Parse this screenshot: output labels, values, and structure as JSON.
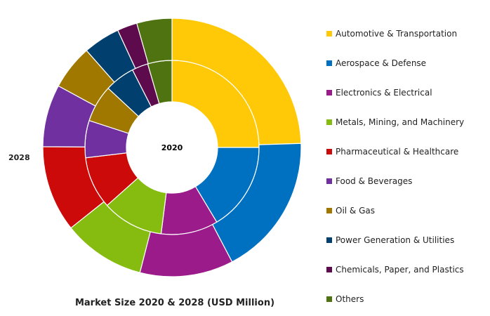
{
  "chart_data": {
    "type": "pie",
    "subtype": "nested-donut",
    "title": "Market Size 2020 & 2028 (USD Million)",
    "inner_label": "2020",
    "outer_label": "2028",
    "categories": [
      "Automotive & Transportation",
      "Aerospace & Defense",
      "Electronics & Electrical",
      "Metals, Mining, and Machinery",
      "Pharmaceutical & Healthcare",
      "Food & Beverages",
      "Oil & Gas",
      "Power Generation & Utilities",
      "Chemicals, Paper, and Plastics",
      "Others"
    ],
    "colors": [
      "#FFC907",
      "#0070C0",
      "#9B1B8A",
      "#86BC10",
      "#CC0A0A",
      "#7030A0",
      "#A07800",
      "#003F6E",
      "#5E0B4E",
      "#4E7310"
    ],
    "series": [
      {
        "name": "2020",
        "ring": "inner",
        "values": [
          25.0,
          16.4,
          10.6,
          11.4,
          9.7,
          6.9,
          6.9,
          5.6,
          3.0,
          4.5
        ]
      },
      {
        "name": "2028",
        "ring": "outer",
        "values": [
          24.5,
          17.8,
          11.7,
          10.3,
          10.8,
          7.8,
          5.6,
          4.6,
          2.5,
          4.4
        ]
      }
    ],
    "legend_position": "right"
  }
}
